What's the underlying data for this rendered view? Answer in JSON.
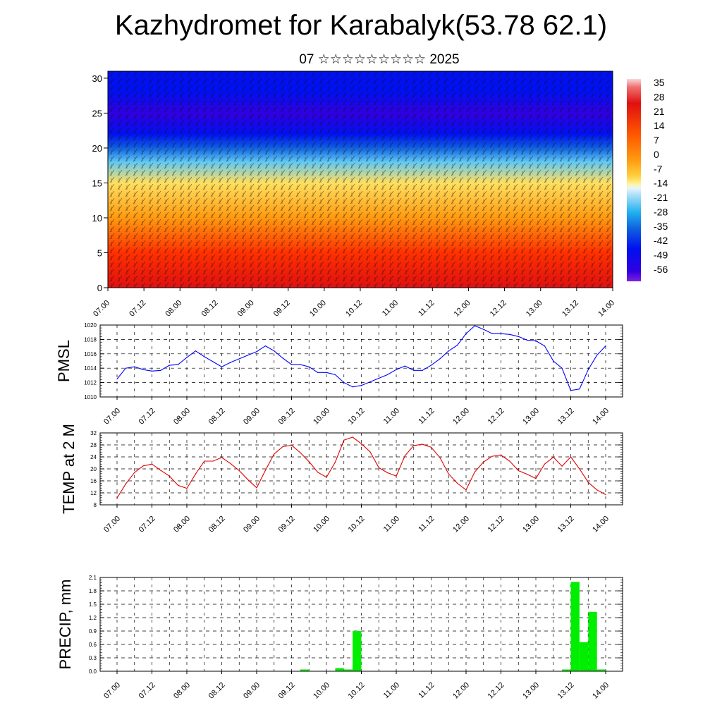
{
  "title": "Kazhydromet for Karabalyk(53.78 62.1)",
  "subtitle": "07 ☆☆☆☆☆☆☆☆☆ 2025",
  "time_ticks": [
    "07.00",
    "07.12",
    "08.00",
    "08.12",
    "09.00",
    "09.12",
    "10.00",
    "10.12",
    "11.00",
    "11.12",
    "12.00",
    "12.12",
    "13.00",
    "13.12",
    "14.00"
  ],
  "chart_data": [
    {
      "type": "heatmap",
      "id": "cross-section",
      "xlabel": "",
      "ylabel": "",
      "ylim": [
        0,
        31
      ],
      "yticks": [
        0,
        5,
        10,
        15,
        20,
        25,
        30
      ],
      "colorbar_labels": [
        "35",
        "28",
        "21",
        "14",
        "7",
        "0",
        "-7",
        "-14",
        "-21",
        "-28",
        "-35",
        "-42",
        "-49",
        "-56"
      ],
      "temperature_profile": [
        {
          "level": 0,
          "temp": 30
        },
        {
          "level": 5,
          "temp": 24
        },
        {
          "level": 10,
          "temp": 14
        },
        {
          "level": 15,
          "temp": 0
        },
        {
          "level": 18,
          "temp": -21
        },
        {
          "level": 20,
          "temp": -35
        },
        {
          "level": 22,
          "temp": -49
        },
        {
          "level": 25,
          "temp": -56
        },
        {
          "level": 28,
          "temp": -49
        },
        {
          "level": 31,
          "temp": -49
        }
      ]
    },
    {
      "type": "line",
      "id": "pmsl",
      "ylabel": "PMSL",
      "ylim": [
        1010,
        1020
      ],
      "yticks": [
        1010,
        1012,
        1014,
        1016,
        1018,
        1020
      ],
      "color": "#0000ff",
      "x": [
        0,
        3,
        6,
        9,
        12,
        15,
        18,
        21,
        24,
        27,
        30,
        33,
        36,
        39,
        42,
        45,
        48,
        51,
        54,
        57,
        60,
        63,
        66,
        69,
        72,
        75,
        78,
        81,
        84,
        87,
        90,
        93,
        96,
        99,
        102,
        105,
        108,
        111,
        114,
        117,
        120,
        123,
        126,
        129,
        132,
        135,
        138,
        141,
        144,
        147,
        150,
        153,
        156,
        159,
        162,
        165,
        168
      ],
      "values": [
        1012.5,
        1014.0,
        1014.2,
        1013.8,
        1013.6,
        1013.7,
        1014.4,
        1014.5,
        1015.5,
        1016.4,
        1015.6,
        1014.9,
        1014.2,
        1014.8,
        1015.3,
        1015.8,
        1016.3,
        1017.1,
        1016.4,
        1015.4,
        1014.5,
        1014.5,
        1014.2,
        1013.4,
        1013.4,
        1013.1,
        1012.0,
        1011.4,
        1011.6,
        1012.1,
        1012.6,
        1013.1,
        1013.8,
        1014.3,
        1013.7,
        1013.7,
        1014.4,
        1015.3,
        1016.4,
        1017.2,
        1018.8,
        1019.9,
        1019.4,
        1018.8,
        1018.8,
        1018.7,
        1018.4,
        1017.9,
        1017.8,
        1017.1,
        1015.0,
        1014.0,
        1010.9,
        1011.1,
        1013.8,
        1015.8,
        1017.1
      ]
    },
    {
      "type": "line",
      "id": "temp2m",
      "ylabel": "TEMP at 2 M",
      "ylim": [
        8,
        32
      ],
      "yticks": [
        8,
        12,
        16,
        20,
        24,
        28,
        32
      ],
      "color": "#e00000",
      "x": [
        0,
        3,
        6,
        9,
        12,
        15,
        18,
        21,
        24,
        27,
        30,
        33,
        36,
        39,
        42,
        45,
        48,
        51,
        54,
        57,
        60,
        63,
        66,
        69,
        72,
        75,
        78,
        81,
        84,
        87,
        90,
        93,
        96,
        99,
        102,
        105,
        108,
        111,
        114,
        117,
        120,
        123,
        126,
        129,
        132,
        135,
        138,
        141,
        144,
        147,
        150,
        153,
        156,
        159,
        162,
        165,
        168
      ],
      "values": [
        10.3,
        15.0,
        18.8,
        21.0,
        21.6,
        19.5,
        17.6,
        14.5,
        13.5,
        18.3,
        22.6,
        22.6,
        23.8,
        21.8,
        19.4,
        16.4,
        13.7,
        19.5,
        25.0,
        27.4,
        27.9,
        25.4,
        22.4,
        18.9,
        17.2,
        22.2,
        29.6,
        30.6,
        28.4,
        25.7,
        20.4,
        18.7,
        17.6,
        24.4,
        27.8,
        28.2,
        27.2,
        23.8,
        18.3,
        15.2,
        13.0,
        19.0,
        22.3,
        24.2,
        24.6,
        22.6,
        19.4,
        18.2,
        16.8,
        21.6,
        23.9,
        20.9,
        24.0,
        20.0,
        15.5,
        13.0,
        11.4
      ]
    },
    {
      "type": "bar",
      "id": "precip",
      "ylabel": "PRECIP, mm",
      "ylim": [
        0,
        2.1
      ],
      "yticks": [
        "0.0",
        "0.3",
        "0.6",
        "0.9",
        "1.2",
        "1.5",
        "1.8",
        "2.1"
      ],
      "color": "#00ee00",
      "bars": [
        {
          "start": 63,
          "end": 66,
          "value": 0.04
        },
        {
          "start": 75,
          "end": 78,
          "value": 0.07
        },
        {
          "start": 78,
          "end": 81,
          "value": 0.04
        },
        {
          "start": 81,
          "end": 84,
          "value": 0.9
        },
        {
          "start": 105,
          "end": 108,
          "value": 0.01
        },
        {
          "start": 153,
          "end": 156,
          "value": 0.04
        },
        {
          "start": 156,
          "end": 159,
          "value": 2.0
        },
        {
          "start": 159,
          "end": 162,
          "value": 0.65
        },
        {
          "start": 162,
          "end": 165,
          "value": 1.33
        },
        {
          "start": 165,
          "end": 168,
          "value": 0.04
        }
      ]
    }
  ]
}
